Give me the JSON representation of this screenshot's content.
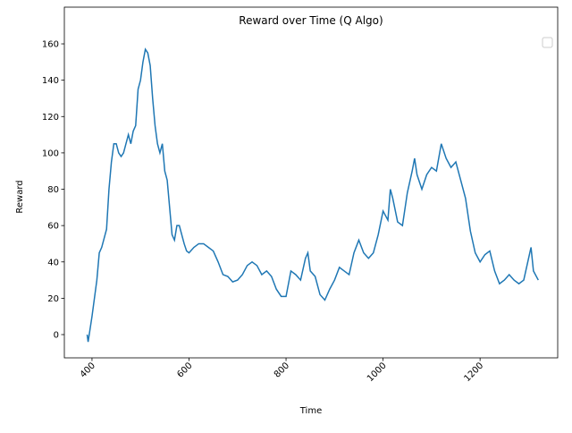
{
  "chart_data": {
    "type": "line",
    "title": "Reward over Time (Q Algo)",
    "x_label": "Time",
    "y_label": "Reward",
    "x": [
      390,
      392,
      400,
      410,
      415,
      420,
      430,
      435,
      440,
      445,
      450,
      455,
      460,
      465,
      470,
      475,
      480,
      485,
      490,
      495,
      500,
      505,
      510,
      515,
      520,
      525,
      530,
      535,
      540,
      545,
      550,
      555,
      560,
      565,
      570,
      575,
      580,
      585,
      590,
      595,
      600,
      610,
      620,
      630,
      640,
      650,
      660,
      670,
      680,
      690,
      700,
      710,
      720,
      730,
      740,
      750,
      760,
      770,
      780,
      790,
      800,
      810,
      820,
      830,
      840,
      845,
      850,
      860,
      870,
      880,
      890,
      900,
      910,
      920,
      930,
      940,
      950,
      960,
      970,
      980,
      990,
      1000,
      1010,
      1015,
      1020,
      1030,
      1040,
      1050,
      1060,
      1065,
      1070,
      1080,
      1090,
      1100,
      1110,
      1120,
      1130,
      1140,
      1150,
      1160,
      1170,
      1180,
      1190,
      1200,
      1210,
      1220,
      1230,
      1240,
      1250,
      1260,
      1270,
      1280,
      1290,
      1300,
      1305,
      1310,
      1320
    ],
    "series": [
      {
        "color": "#1f77b4",
        "values": [
          0,
          -4,
          10,
          30,
          45,
          48,
          58,
          80,
          95,
          105,
          105,
          100,
          98,
          100,
          105,
          110,
          105,
          112,
          115,
          135,
          140,
          150,
          157,
          155,
          148,
          130,
          115,
          105,
          100,
          105,
          90,
          85,
          70,
          55,
          52,
          60,
          60,
          55,
          50,
          46,
          45,
          48,
          50,
          50,
          48,
          46,
          40,
          33,
          32,
          29,
          30,
          33,
          38,
          40,
          38,
          33,
          35,
          32,
          25,
          21,
          21,
          35,
          33,
          30,
          42,
          45,
          35,
          32,
          22,
          19,
          25,
          30,
          37,
          35,
          33,
          45,
          52,
          45,
          42,
          45,
          55,
          68,
          63,
          80,
          75,
          62,
          60,
          78,
          90,
          97,
          88,
          80,
          88,
          92,
          90,
          105,
          97,
          92,
          95,
          85,
          75,
          57,
          45,
          40,
          44,
          46,
          35,
          28,
          30,
          33,
          30,
          28,
          30,
          42,
          48,
          35,
          30
        ]
      }
    ],
    "xlim": [
      343,
      1360
    ],
    "ylim": [
      -12.8,
      180.2
    ],
    "xticks": [
      400,
      600,
      800,
      1000,
      1200
    ],
    "yticks": [
      0,
      20,
      40,
      60,
      80,
      100,
      120,
      140,
      160
    ]
  }
}
